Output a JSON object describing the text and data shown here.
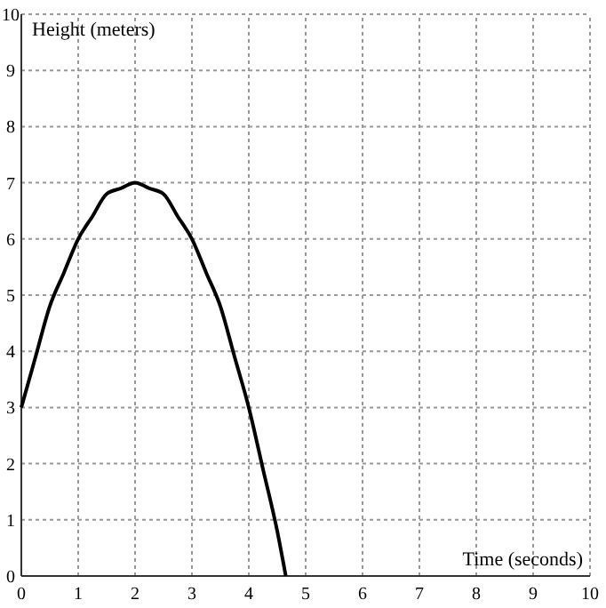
{
  "chart_data": {
    "type": "line",
    "xlabel": "Time (seconds)",
    "ylabel": "Height (meters)",
    "x": [
      0,
      0.25,
      0.5,
      0.75,
      1,
      1.25,
      1.5,
      1.75,
      2,
      2.25,
      2.5,
      2.75,
      3,
      3.25,
      3.5,
      3.75,
      4,
      4.25,
      4.5,
      4.65
    ],
    "series": [
      {
        "color": "#000000",
        "values": [
          3,
          3.9,
          4.8,
          5.4,
          6,
          6.4,
          6.8,
          6.9,
          7,
          6.9,
          6.8,
          6.4,
          6,
          5.4,
          4.8,
          3.9,
          3,
          1.9,
          0.8,
          0
        ]
      }
    ],
    "xlim": [
      0,
      10
    ],
    "ylim": [
      0,
      10
    ],
    "xticks": [
      0,
      1,
      2,
      3,
      4,
      5,
      6,
      7,
      8,
      9,
      10
    ],
    "yticks": [
      0,
      1,
      2,
      3,
      4,
      5,
      6,
      7,
      8,
      9,
      10
    ],
    "grid": true,
    "marker": "none",
    "line_style": "solid"
  }
}
